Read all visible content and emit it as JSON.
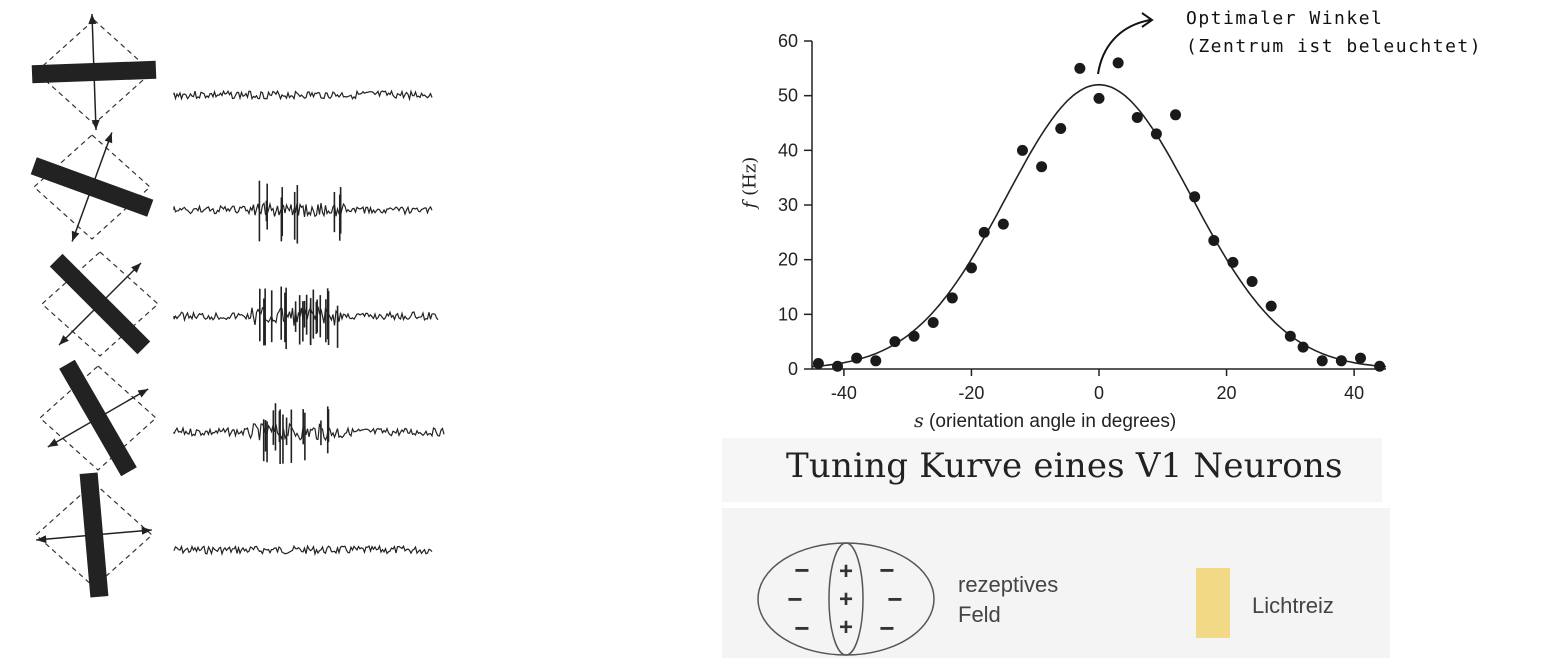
{
  "chart_data": {
    "type": "scatter",
    "title": "Tuning Kurve eines V1 Neurons",
    "xlabel_var": "s",
    "xlabel_rest": "(orientation angle in degrees)",
    "ylabel_var": "f",
    "ylabel_rest": "(Hz)",
    "xlim": [
      -45,
      45
    ],
    "ylim": [
      0,
      60
    ],
    "xticks": [
      -40,
      -20,
      0,
      20,
      40
    ],
    "yticks": [
      0,
      10,
      20,
      30,
      40,
      50,
      60
    ],
    "grid": false,
    "points": {
      "x": [
        -44,
        -41,
        -38,
        -35,
        -32,
        -29,
        -26,
        -23,
        -20,
        -18,
        -15,
        -12,
        -9,
        -6,
        -3,
        0,
        3,
        6,
        9,
        12,
        15,
        18,
        21,
        24,
        27,
        30,
        32,
        35,
        38,
        41,
        44
      ],
      "y": [
        1,
        0.5,
        2,
        1.5,
        5,
        6,
        8.5,
        13,
        18.5,
        25,
        26.5,
        40,
        37,
        44,
        55,
        49.5,
        56,
        46,
        43,
        46.5,
        31.5,
        23.5,
        19.5,
        16,
        11.5,
        6,
        4,
        1.5,
        1.5,
        2,
        0.5
      ]
    },
    "fit": {
      "type": "gaussian",
      "amplitude": 52,
      "mean": 0,
      "sigma": 14.5
    },
    "annotation": [
      "Optimaler Winkel",
      "(Zentrum ist beleuchtet)"
    ]
  },
  "legend": {
    "receptive_field": [
      "rezeptives",
      "Feld"
    ],
    "light_stimulus": "Lichtreiz",
    "light_color": "#f2d985",
    "field_signs": {
      "off": "−",
      "on": "+"
    }
  },
  "stimuli": {
    "bar_orientations_deg": [
      -2,
      20,
      45,
      60,
      85
    ],
    "response_levels": [
      0,
      0.5,
      1,
      0.7,
      0
    ]
  }
}
